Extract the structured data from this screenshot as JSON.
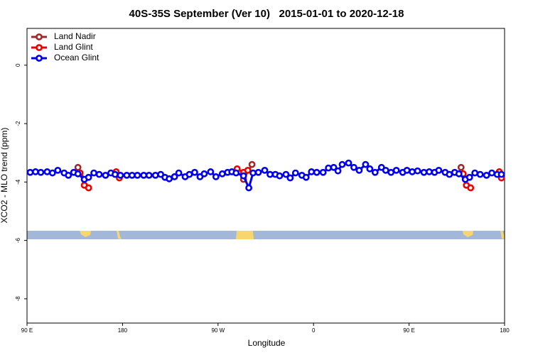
{
  "chart_data": {
    "type": "line",
    "title": "40S-35S September (Ver 10)   2015-01-01 to 2020-12-18",
    "xlabel": "Longitude",
    "ylabel": "XCO2 - MLO trend (ppm)",
    "xlim": [
      90,
      540
    ],
    "ylim": [
      -8.83,
      1.26
    ],
    "xticks": [
      {
        "value": 90,
        "label": "90 E"
      },
      {
        "value": 180,
        "label": "180"
      },
      {
        "value": 270,
        "label": "90 W"
      },
      {
        "value": 360,
        "label": "0"
      },
      {
        "value": 450,
        "label": "90 E"
      },
      {
        "value": 540,
        "label": "180"
      }
    ],
    "yticks": [
      0,
      -2,
      -4,
      -6,
      -8
    ],
    "legend": "top-left",
    "series": [
      {
        "name": "Land Nadir",
        "color": "#a02828",
        "x": [
          138,
          144,
          220,
          294,
          302,
          400,
          499,
          503
        ],
        "values": [
          -3.5,
          -3.91,
          null,
          -3.91,
          -3.4,
          null,
          -3.5,
          -3.89
        ]
      },
      {
        "name": "Land Glint",
        "color": "#ee0000",
        "x": [
          140,
          144,
          148,
          160,
          174,
          177,
          230,
          288,
          294,
          298,
          400,
          501,
          504,
          508,
          520,
          535,
          537
        ],
        "values": [
          -3.69,
          -4.11,
          -4.2,
          null,
          -3.65,
          -3.86,
          null,
          -3.55,
          -3.67,
          -3.6,
          null,
          -3.72,
          -4.11,
          -4.2,
          null,
          -3.65,
          -3.86
        ]
      },
      {
        "name": "Ocean Glint",
        "color": "#0000ee",
        "x": [
          93,
          98,
          103,
          109,
          114,
          119,
          125,
          129,
          134,
          138,
          144,
          148,
          153,
          158,
          164,
          169,
          173,
          178,
          184,
          189,
          194,
          200,
          205,
          211,
          216,
          220,
          224,
          229,
          233,
          239,
          243,
          248,
          253,
          257,
          263,
          268,
          274,
          279,
          283,
          287,
          294,
          299,
          303,
          308,
          314,
          319,
          324,
          328,
          334,
          338,
          343,
          349,
          353,
          358,
          363,
          369,
          374,
          379,
          383,
          387,
          393,
          398,
          403,
          409,
          413,
          418,
          424,
          428,
          433,
          438,
          444,
          448,
          453,
          458,
          464,
          469,
          474,
          478,
          484,
          488,
          493,
          497,
          503,
          507,
          512,
          517,
          523,
          528,
          533,
          537
        ],
        "values": [
          -3.67,
          -3.65,
          -3.67,
          -3.65,
          -3.69,
          -3.6,
          -3.69,
          -3.77,
          -3.67,
          -3.72,
          -3.91,
          -3.84,
          -3.69,
          -3.74,
          -3.77,
          -3.69,
          -3.74,
          -3.77,
          -3.77,
          -3.77,
          -3.77,
          -3.77,
          -3.77,
          -3.77,
          -3.74,
          -3.84,
          -3.89,
          -3.82,
          -3.69,
          -3.82,
          -3.74,
          -3.67,
          -3.82,
          -3.72,
          -3.65,
          -3.82,
          -3.72,
          -3.67,
          -3.65,
          -3.69,
          -3.79,
          -4.2,
          -3.69,
          -3.67,
          -3.6,
          -3.74,
          -3.74,
          -3.79,
          -3.74,
          -3.86,
          -3.69,
          -3.77,
          -3.84,
          -3.65,
          -3.67,
          -3.67,
          -3.52,
          -3.5,
          -3.62,
          -3.4,
          -3.35,
          -3.5,
          -3.6,
          -3.4,
          -3.55,
          -3.67,
          -3.5,
          -3.6,
          -3.67,
          -3.6,
          -3.67,
          -3.6,
          -3.65,
          -3.62,
          -3.67,
          -3.65,
          -3.67,
          -3.6,
          -3.67,
          -3.74,
          -3.67,
          -3.72,
          -3.91,
          -3.84,
          -3.69,
          -3.74,
          -3.77,
          -3.69,
          -3.74,
          -3.74
        ]
      }
    ]
  }
}
